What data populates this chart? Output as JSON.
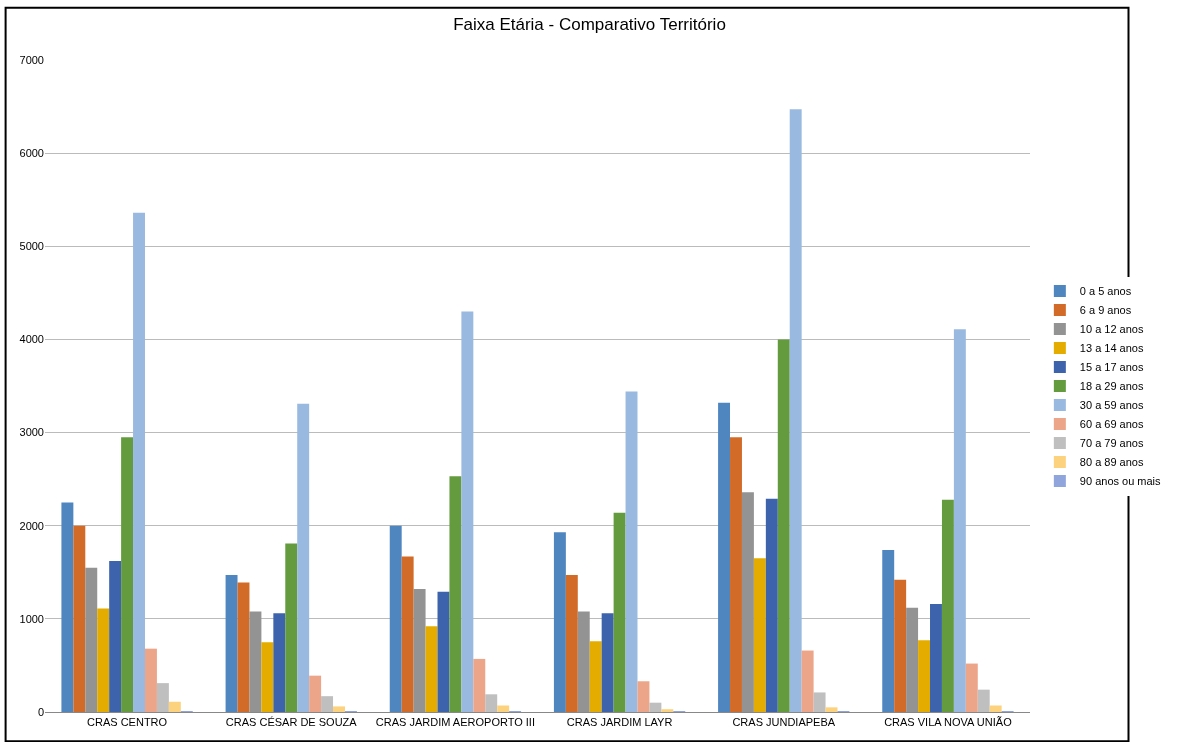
{
  "chart_data": {
    "type": "bar",
    "title": "Faixa Etária - Comparativo Território",
    "categories": [
      "CRAS CENTRO",
      "CRAS CÉSAR DE SOUZA",
      "CRAS JARDIM AEROPORTO III",
      "CRAS JARDIM LAYR",
      "CRAS JUNDIAPEBA",
      "CRAS VILA NOVA UNIÃO"
    ],
    "series": [
      {
        "name": "0 a 5 anos",
        "color": "#4f86c0",
        "values": [
          2250,
          1470,
          2000,
          1930,
          3320,
          1740
        ]
      },
      {
        "name": "6 a 9 anos",
        "color": "#d36b28",
        "values": [
          2000,
          1390,
          1670,
          1470,
          2950,
          1420
        ]
      },
      {
        "name": "10 a 12 anos",
        "color": "#939393",
        "values": [
          1550,
          1080,
          1320,
          1080,
          2360,
          1120
        ]
      },
      {
        "name": "13 a 14 anos",
        "color": "#e5ac00",
        "values": [
          1110,
          750,
          920,
          760,
          1650,
          770
        ]
      },
      {
        "name": "15 a 17 anos",
        "color": "#3d63ad",
        "values": [
          1620,
          1060,
          1290,
          1060,
          2290,
          1160
        ]
      },
      {
        "name": "18 a 29 anos",
        "color": "#649b3f",
        "values": [
          2950,
          1810,
          2530,
          2140,
          4000,
          2280
        ]
      },
      {
        "name": "30 a 59 anos",
        "color": "#9ab9e0",
        "values": [
          5360,
          3310,
          4300,
          3440,
          6470,
          4110
        ]
      },
      {
        "name": "60 a 69 anos",
        "color": "#eda58a",
        "values": [
          680,
          390,
          570,
          330,
          660,
          520
        ]
      },
      {
        "name": "70 a 79 anos",
        "color": "#bfbfbf",
        "values": [
          310,
          170,
          190,
          100,
          210,
          240
        ]
      },
      {
        "name": "80 a 89 anos",
        "color": "#fdd27e",
        "values": [
          110,
          60,
          70,
          30,
          50,
          70
        ]
      },
      {
        "name": "90 anos ou mais",
        "color": "#8fa5dc",
        "values": [
          10,
          10,
          10,
          10,
          10,
          10
        ]
      }
    ],
    "ylim": [
      0,
      7000
    ],
    "yticks": [
      0,
      1000,
      2000,
      3000,
      4000,
      5000,
      6000,
      7000
    ],
    "grid": "y",
    "legend": "right"
  }
}
